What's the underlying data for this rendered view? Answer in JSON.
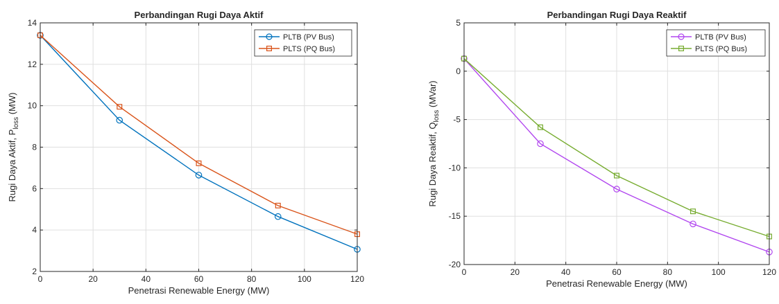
{
  "chart_data": [
    {
      "type": "line",
      "title": "Perbandingan Rugi Daya Aktif",
      "xlabel": "Penetrasi Renewable Energy (MW)",
      "ylabel_main": "Rugi Daya Aktif, P",
      "ylabel_sub": "loss",
      "ylabel_unit": " (MW)",
      "x": [
        0,
        30,
        60,
        90,
        120
      ],
      "xlim": [
        0,
        120
      ],
      "ylim": [
        2,
        14
      ],
      "xticks": [
        0,
        20,
        40,
        60,
        80,
        100,
        120
      ],
      "yticks": [
        2,
        4,
        6,
        8,
        10,
        12,
        14
      ],
      "grid": true,
      "legend_position": "top-right",
      "series": [
        {
          "name": "PLTB (PV Bus)",
          "marker": "circle",
          "color": "#0072BD",
          "values": [
            13.4,
            9.3,
            6.65,
            4.65,
            3.07
          ]
        },
        {
          "name": "PLTS (PQ Bus)",
          "marker": "square",
          "color": "#D95319",
          "values": [
            13.4,
            9.95,
            7.22,
            5.18,
            3.8
          ]
        }
      ]
    },
    {
      "type": "line",
      "title": "Perbandingan Rugi Daya Reaktif",
      "xlabel": "Penetrasi Renewable Energy (MW)",
      "ylabel_main": "Rugi Daya Reaktif, Q",
      "ylabel_sub": "loss",
      "ylabel_unit": " (MVar)",
      "x": [
        0,
        30,
        60,
        90,
        120
      ],
      "xlim": [
        0,
        120
      ],
      "ylim": [
        -20,
        5
      ],
      "xticks": [
        0,
        20,
        40,
        60,
        80,
        100,
        120
      ],
      "yticks": [
        -20,
        -15,
        -10,
        -5,
        0,
        5
      ],
      "grid": true,
      "legend_position": "top-right",
      "series": [
        {
          "name": "PLTB (PV Bus)",
          "marker": "circle",
          "color": "#B146EF",
          "values": [
            1.3,
            -7.5,
            -12.2,
            -15.8,
            -18.7
          ]
        },
        {
          "name": "PLTS (PQ Bus)",
          "marker": "square",
          "color": "#77AC30",
          "values": [
            1.3,
            -5.8,
            -10.8,
            -14.5,
            -17.1
          ]
        }
      ]
    }
  ]
}
